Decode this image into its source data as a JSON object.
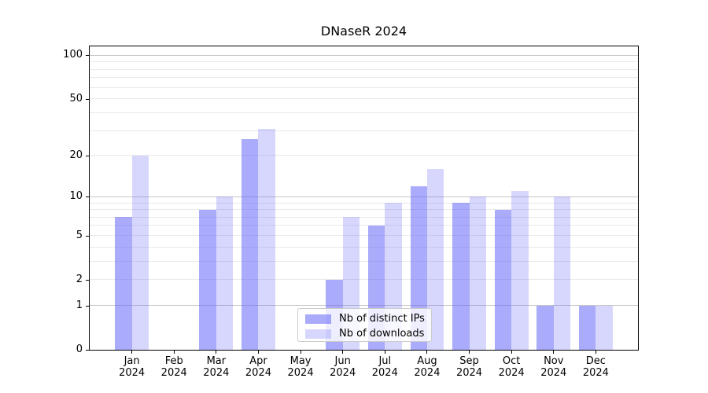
{
  "chart_data": {
    "type": "bar",
    "title": "DNaseR 2024",
    "categories": [
      "Jan 2024",
      "Feb 2024",
      "Mar 2024",
      "Apr 2024",
      "May 2024",
      "Jun 2024",
      "Jul 2024",
      "Aug 2024",
      "Sep 2024",
      "Oct 2024",
      "Nov 2024",
      "Dec 2024"
    ],
    "x_tick_line1": [
      "Jan",
      "Feb",
      "Mar",
      "Apr",
      "May",
      "Jun",
      "Jul",
      "Aug",
      "Sep",
      "Oct",
      "Nov",
      "Dec"
    ],
    "x_tick_line2": "2024",
    "series": [
      {
        "name": "Nb of distinct IPs",
        "values": [
          7,
          0,
          8,
          26,
          0,
          2,
          6,
          12,
          9,
          8,
          1,
          1
        ],
        "color": "rgba(100,102,246,0.55)"
      },
      {
        "name": "Nb of downloads",
        "values": [
          20,
          0,
          10,
          31,
          0,
          7,
          9,
          16,
          10,
          11,
          10,
          1
        ],
        "color": "rgba(100,102,246,0.26)"
      }
    ],
    "yscale": "log1p",
    "ylim": [
      0,
      115
    ],
    "yticks": [
      0,
      1,
      2,
      5,
      10,
      20,
      50,
      100
    ],
    "major_gridlines": [
      1,
      10,
      100
    ],
    "minor_gridlines": [
      2,
      3,
      4,
      5,
      6,
      7,
      8,
      9,
      20,
      30,
      40,
      50,
      60,
      70,
      80,
      90
    ],
    "grid": true,
    "legend_position": "lower-center",
    "xlabel": "",
    "ylabel": ""
  },
  "colors": {
    "major_grid": "#c6c6c6",
    "minor_grid": "#e9e9e9",
    "spine": "#000000",
    "text": "#000000",
    "legend_border": "#cccccc",
    "legend_background": "rgba(255,255,255,0.8)"
  }
}
